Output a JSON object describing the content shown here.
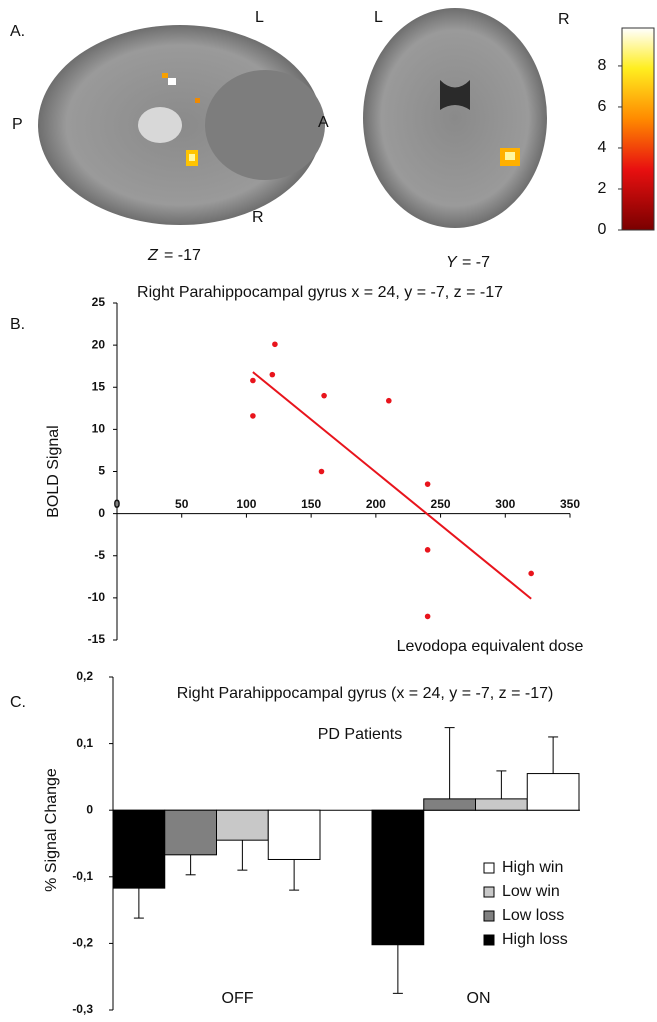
{
  "panel_a": {
    "label": "A.",
    "axial": {
      "left": "P",
      "right": "A",
      "top": "L",
      "bottom": "R",
      "coord_axis": "Z",
      "coord_value": "= -17"
    },
    "coronal": {
      "left": "L",
      "right": "R",
      "coord_axis": "Y",
      "coord_value": "= -7"
    },
    "caption": "Right Parahippocampal gyrus x = 24, y = -7, z = -17",
    "colorbar": {
      "lim": [
        0,
        9.85
      ],
      "ticks": [
        0,
        2,
        4,
        6,
        8
      ]
    }
  },
  "chart_data": [
    {
      "type": "scatter",
      "label": "B.",
      "ylabel": "BOLD Signal",
      "xlabel": "Levodopa equivalent dose",
      "x": [
        105,
        105,
        120,
        122,
        158,
        160,
        210,
        240,
        240,
        240,
        320
      ],
      "y": [
        15.8,
        11.6,
        16.5,
        20.1,
        5,
        14,
        13.4,
        3.5,
        -4.3,
        -12.2,
        -7.1
      ],
      "color": "#e8141c",
      "fit_line": {
        "x": [
          105,
          320
        ],
        "y": [
          16.8,
          -10.1
        ]
      },
      "xlim": [
        0,
        350
      ],
      "xticks": [
        0,
        50,
        100,
        150,
        200,
        250,
        300,
        350
      ],
      "ylim": [
        -15,
        25
      ],
      "yticks": [
        -15,
        -10,
        -5,
        0,
        5,
        10,
        15,
        20,
        25
      ]
    },
    {
      "type": "bar",
      "label": "C.",
      "title": "Right Parahippocampal gyrus (x = 24, y = -7, z = -17)",
      "subtitle": "PD Patients",
      "ylabel": "% Signal Change",
      "categories": [
        "OFF",
        "ON"
      ],
      "series": [
        {
          "name": "High loss",
          "color": "#000000",
          "values": [
            -0.117,
            -0.202
          ],
          "errors": [
            0.045,
            0.073
          ]
        },
        {
          "name": "Low loss",
          "color": "#808080",
          "values": [
            -0.067,
            0.017
          ],
          "errors": [
            0.03,
            0.107
          ]
        },
        {
          "name": "Low win",
          "color": "#c8c8c8",
          "values": [
            -0.045,
            0.017
          ],
          "errors": [
            0.045,
            0.042
          ]
        },
        {
          "name": "High win",
          "color": "#ffffff",
          "values": [
            -0.074,
            0.055
          ],
          "errors": [
            0.046,
            0.055
          ]
        }
      ],
      "ylim": [
        -0.3,
        0.2
      ],
      "yticks": [
        {
          "value": -0.3,
          "label": "-0,3"
        },
        {
          "value": -0.2,
          "label": "-0,2"
        },
        {
          "value": -0.1,
          "label": "-0,1"
        },
        0,
        {
          "value": 0.1,
          "label": "0,1"
        },
        {
          "value": 0.2,
          "label": "0,2"
        }
      ]
    }
  ]
}
